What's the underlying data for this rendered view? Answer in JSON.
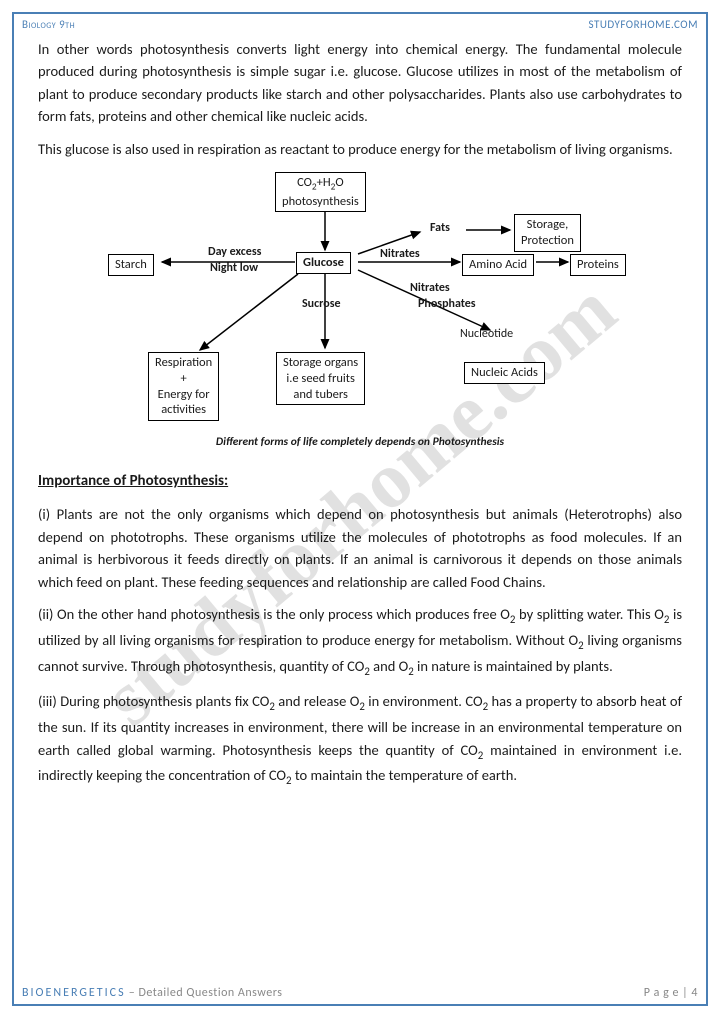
{
  "header": {
    "left": "Biology 9th",
    "right": "STUDYFORHOME.COM"
  },
  "paragraphs": {
    "p1": "In other words photosynthesis converts light energy into chemical energy. The fundamental molecule produced during photosynthesis is simple sugar i.e. glucose. Glucose utilizes in most of the metabolism of plant to produce secondary products like starch and other polysaccharides. Plants also use carbohydrates to form fats, proteins and other chemical like nucleic acids.",
    "p2": "This glucose is also used in respiration as reactant to produce energy for the metabolism of living organisms."
  },
  "diagram": {
    "boxes": {
      "top": "CO₂+H₂O\nphotosynthesis",
      "starch": "Starch",
      "glucose": "Glucose",
      "fats_target": "Storage,\nProtection",
      "amino": "Amino Acid",
      "proteins": "Proteins",
      "respiration": "Respiration\n+\nEnergy for\nactivities",
      "storage": "Storage organs\ni.e seed fruits\nand tubers",
      "nucleic": "Nucleic Acids"
    },
    "labels": {
      "fats": "Fats",
      "day_excess": "Day excess",
      "night_low": "Night low",
      "nitrates1": "Nitrates",
      "sucrose": "Sucrose",
      "nitrates2": "Nitrates",
      "phosphates": "Phosphates",
      "nucleotide": "Nucleotide"
    },
    "caption": "Different forms of life completely depends on Photosynthesis"
  },
  "section": {
    "title": "Importance of Photosynthesis:",
    "i": "(i)     Plants are not the only organisms which depend on photosynthesis but animals (Heterotrophs) also depend on phototrophs. These organisms utilize the molecules of phototrophs as food molecules. If an animal is herbivorous it feeds directly on plants. If an animal is carnivorous it depends on those animals which feed on plant. These feeding sequences and relationship are called Food Chains.",
    "ii": "(ii)     On the other hand photosynthesis is the only process which produces free O₂ by splitting water. This O₂ is utilized by all living organisms for respiration to produce energy for metabolism. Without O₂ living organisms cannot survive. Through photosynthesis, quantity of CO₂ and O₂ in nature is maintained by plants.",
    "iii": "(iii)    During photosynthesis plants fix CO₂ and release O₂ in environment. CO₂ has a property to absorb heat of the sun. If its quantity increases in environment, there will be increase in an environmental temperature on earth called global warming. Photosynthesis keeps the quantity of CO₂ maintained in environment i.e. indirectly keeping the concentration of CO₂ to maintain the temperature of earth."
  },
  "footer": {
    "chapter": "BIOENERGETICS",
    "subtitle": " – Detailed Question Answers",
    "page_label": "P a g e ",
    "page_num": "| 4"
  },
  "watermark": "studyforhome.com",
  "colors": {
    "accent": "#4a7fb5",
    "text": "#1a1a1a",
    "muted": "#888"
  }
}
